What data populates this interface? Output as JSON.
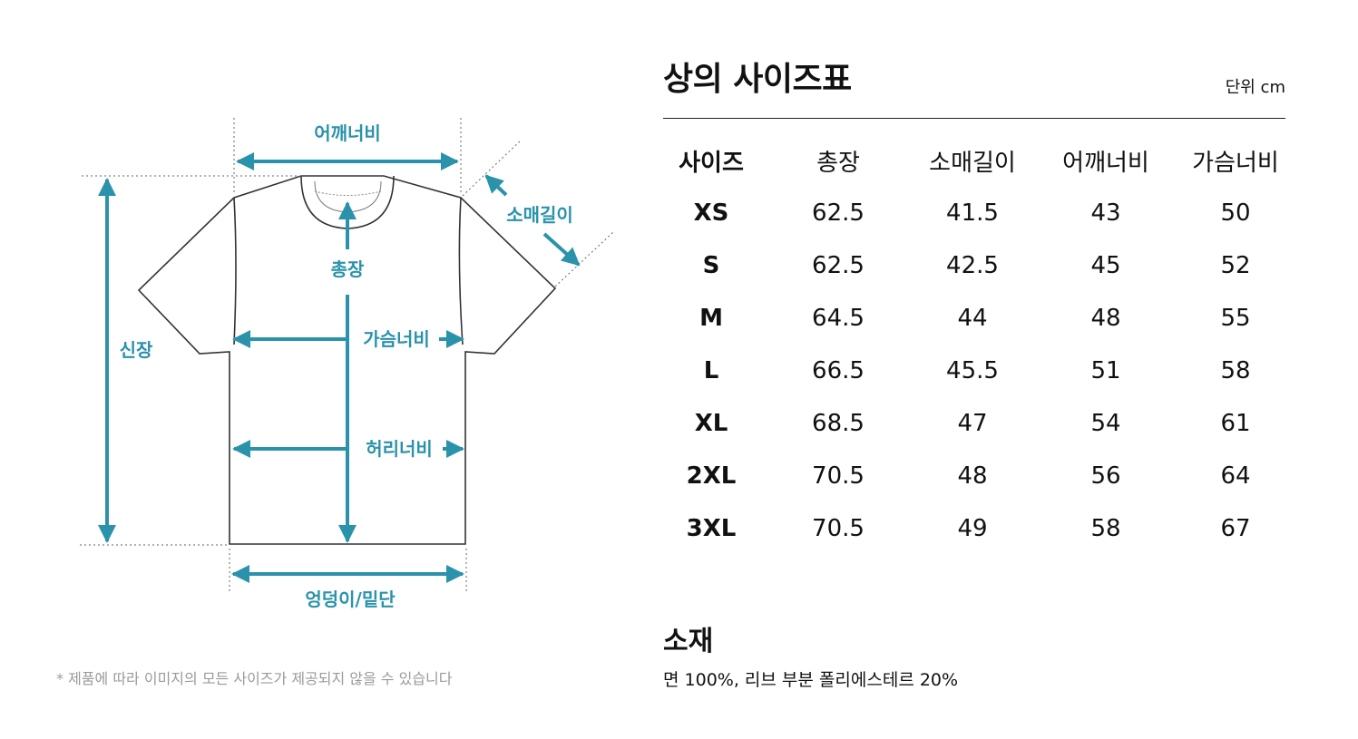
{
  "diagram": {
    "labels": {
      "shoulder": "어깨너비",
      "sleeve": "소매길이",
      "length": "총장",
      "height": "신장",
      "chest": "가슴너비",
      "waist": "허리너비",
      "hem": "엉덩이/밑단"
    },
    "note": "* 제품에 따라 이미지의 모든 사이즈가 제공되지 않을 수 있습니다",
    "accent_color": "#2a93ab"
  },
  "size_chart": {
    "title": "상의 사이즈표",
    "unit": "단위 cm",
    "headers": [
      "사이즈",
      "총장",
      "소매길이",
      "어깨너비",
      "가슴너비"
    ],
    "rows": [
      [
        "XS",
        "62.5",
        "41.5",
        "43",
        "50"
      ],
      [
        "S",
        "62.5",
        "42.5",
        "45",
        "52"
      ],
      [
        "M",
        "64.5",
        "44",
        "48",
        "55"
      ],
      [
        "L",
        "66.5",
        "45.5",
        "51",
        "58"
      ],
      [
        "XL",
        "68.5",
        "47",
        "54",
        "61"
      ],
      [
        "2XL",
        "70.5",
        "48",
        "56",
        "64"
      ],
      [
        "3XL",
        "70.5",
        "49",
        "58",
        "67"
      ]
    ]
  },
  "material": {
    "title": "소재",
    "text": "면 100%, 리브 부분 폴리에스테르 20%"
  }
}
